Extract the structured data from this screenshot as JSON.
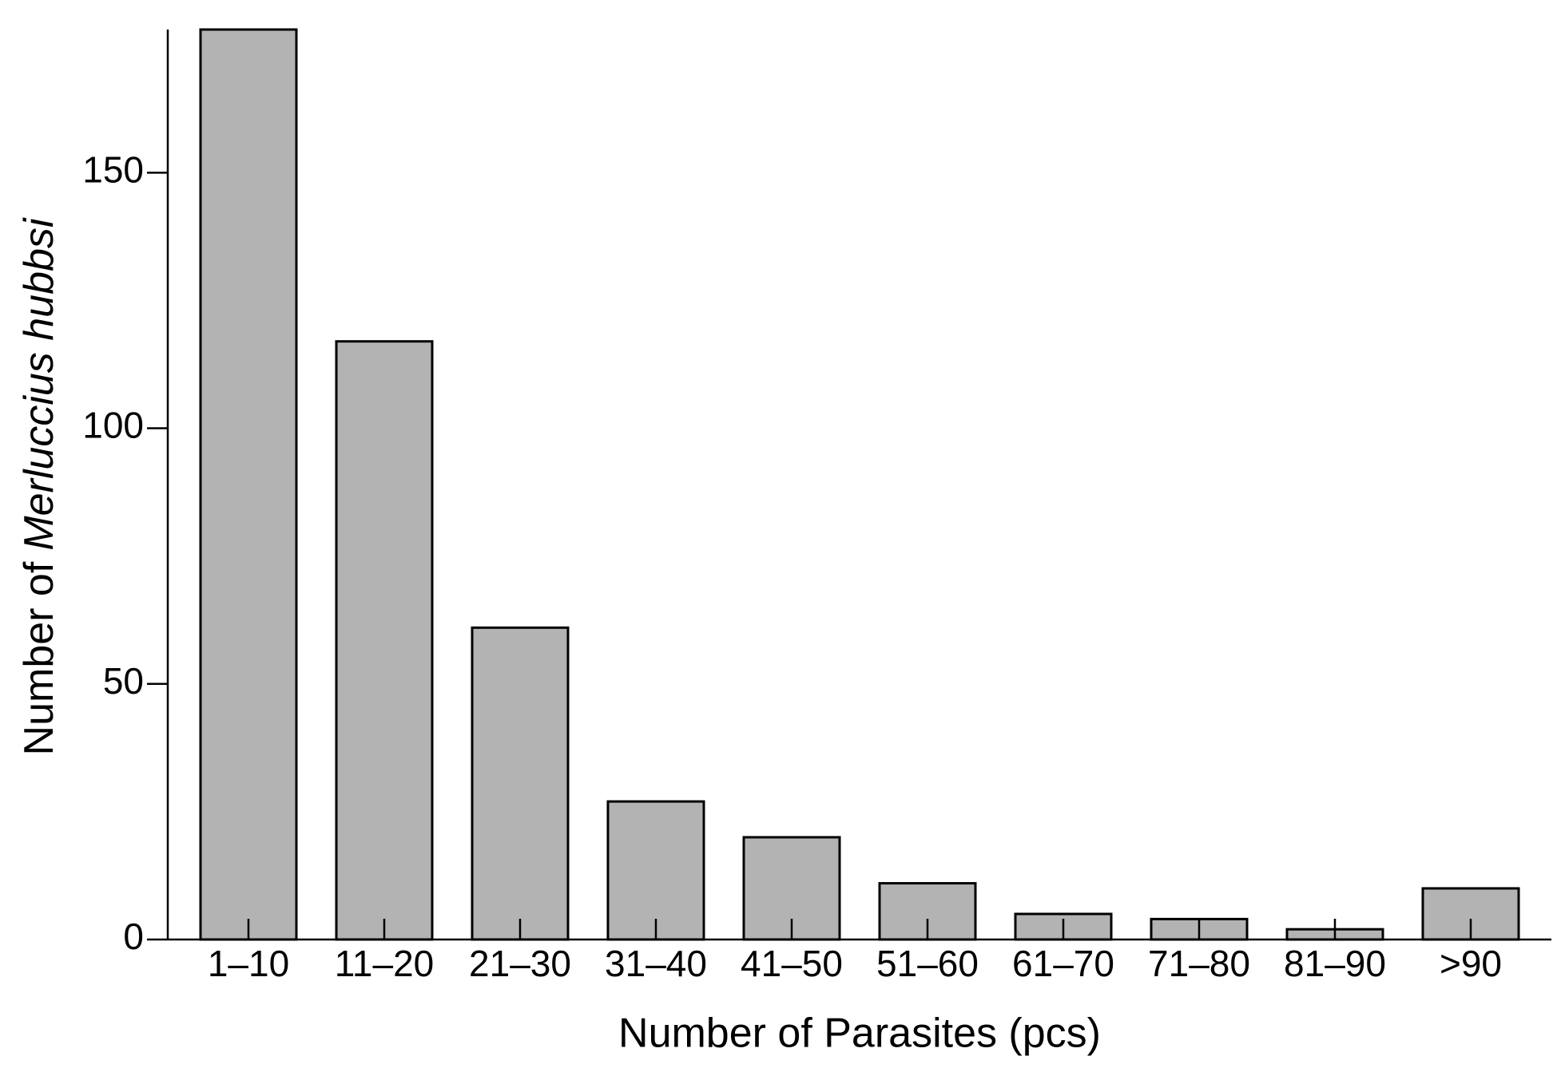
{
  "chart_data": {
    "type": "bar",
    "xlabel": "Number of Parasites (pcs)",
    "ylabel_prefix": "Number of",
    "ylabel_species": "Merluccius hubbsi",
    "categories": [
      "1–10",
      "11–20",
      "21–30",
      "31–40",
      "41–50",
      "51–60",
      "61–70",
      "71–80",
      "81–90",
      ">90"
    ],
    "values": [
      178,
      117,
      61,
      27,
      20,
      11,
      5,
      4,
      2,
      10
    ],
    "color": "#b3b3b3",
    "ylim": [
      0,
      178
    ],
    "yticks": [
      0,
      50,
      100,
      150
    ],
    "grid": false
  }
}
